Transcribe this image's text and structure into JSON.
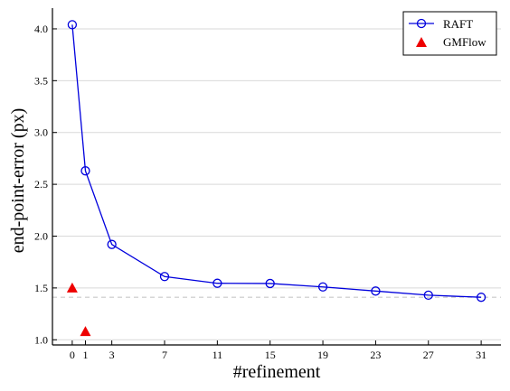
{
  "chart_data": {
    "type": "line",
    "xlabel": "#refinement",
    "ylabel": "end-point-error (px)",
    "x_ticks": [
      0,
      1,
      3,
      7,
      11,
      15,
      19,
      23,
      27,
      31
    ],
    "y_ticks": [
      "1.0",
      "1.5",
      "2.0",
      "2.5",
      "3.0",
      "3.5",
      "4.0"
    ],
    "xlim": [
      -1.5,
      32.5
    ],
    "ylim": [
      0.95,
      4.2
    ],
    "grid": "horizontal",
    "legend_placement": "top-right",
    "reference_line": {
      "y": 1.41,
      "color": "#c8c8c8",
      "style": "dashed"
    },
    "series": [
      {
        "name": "RAFT",
        "marker": "open-circle",
        "color": "#0000dd",
        "x": [
          0,
          1,
          3,
          7,
          11,
          15,
          19,
          23,
          27,
          31
        ],
        "y": [
          4.04,
          2.63,
          1.92,
          1.61,
          1.545,
          1.543,
          1.51,
          1.47,
          1.43,
          1.41
        ]
      },
      {
        "name": "GMFlow",
        "marker": "filled-triangle",
        "color": "#ee0000",
        "x": [
          0,
          1
        ],
        "y": [
          1.5,
          1.08
        ]
      }
    ]
  }
}
